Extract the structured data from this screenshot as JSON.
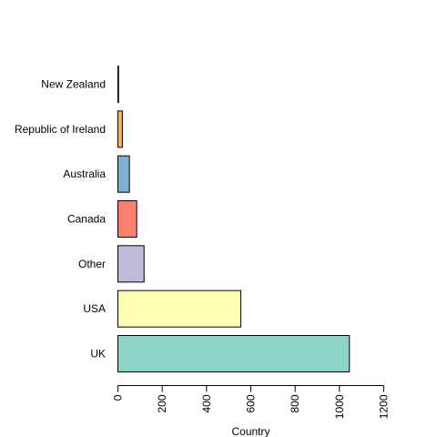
{
  "chart_data": {
    "type": "bar",
    "orientation": "horizontal",
    "categories": [
      "UK",
      "USA",
      "Other",
      "Canada",
      "Australia",
      "Republic of Ireland",
      "New Zealand"
    ],
    "values": [
      1045,
      555,
      118,
      85,
      52,
      20,
      3
    ],
    "colors": [
      "#8DD3C7",
      "#FFFFB3",
      "#BEBADA",
      "#FB8072",
      "#80B1D3",
      "#FDB462",
      "#B3DE69"
    ],
    "xlabel": "Country",
    "xlim": [
      0,
      1200
    ],
    "xticks": [
      0,
      200,
      400,
      600,
      800,
      1000,
      1200
    ],
    "grid": false,
    "legend": "none"
  }
}
